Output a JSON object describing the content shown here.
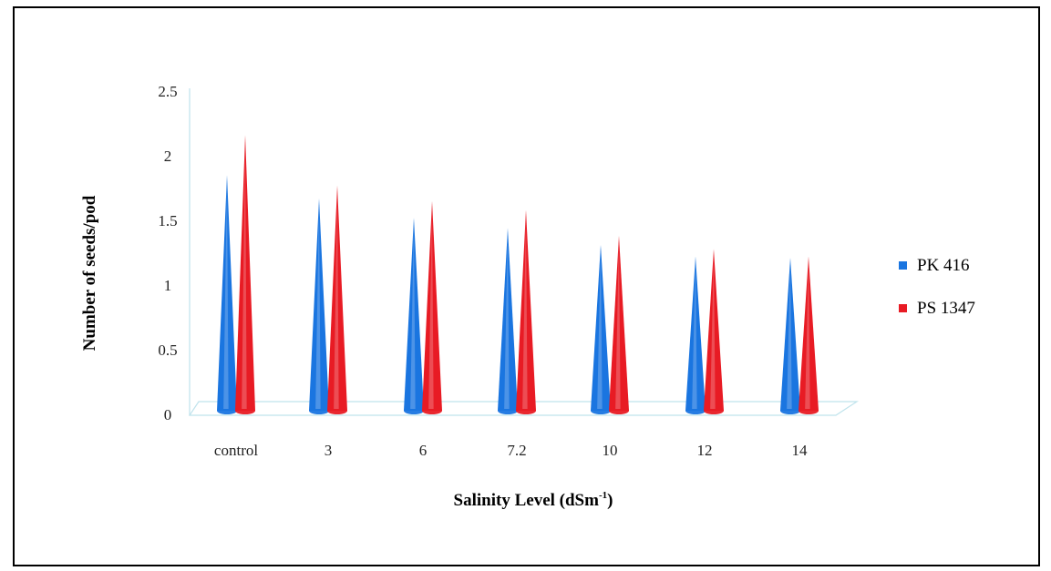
{
  "chart_data": {
    "type": "bar",
    "bar_shape": "cone",
    "categories": [
      "control",
      "3",
      "6",
      "7.2",
      "10",
      "12",
      "14"
    ],
    "series": [
      {
        "name": "PK 416",
        "color": "#1a75e0",
        "values": [
          1.85,
          1.67,
          1.52,
          1.44,
          1.31,
          1.22,
          1.21
        ]
      },
      {
        "name": "PS 1347",
        "color": "#e81b24",
        "values": [
          2.16,
          1.77,
          1.65,
          1.58,
          1.38,
          1.28,
          1.22
        ]
      }
    ],
    "yticks": [
      "0",
      "0.5",
      "1",
      "1.5",
      "2",
      "2.5"
    ],
    "ylim": [
      0,
      2.5
    ],
    "ylabel": "Number of seeds/pod",
    "xlabel_main": "Salinity Level (dSm",
    "xlabel_sup": "-1",
    "xlabel_close": ")",
    "legend_position": "right",
    "grid": false
  }
}
